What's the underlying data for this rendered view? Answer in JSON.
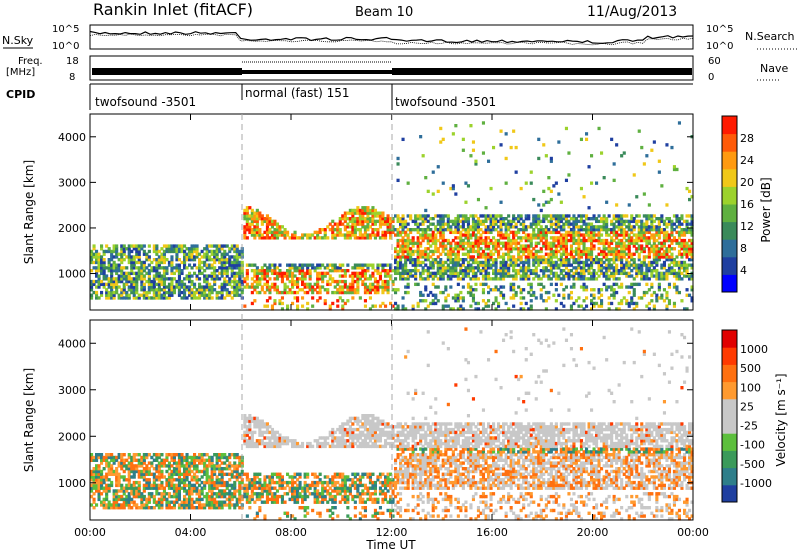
{
  "header": {
    "station": "Rankin Inlet (fitACF)",
    "beam": "Beam 10",
    "date": "11/Aug/2013"
  },
  "top_panels": {
    "nsky_label": "N.Sky",
    "nsky_left_ticks": [
      "10^5",
      "10^0"
    ],
    "nsearch_label": "N.Search",
    "nsearch_right_ticks": [
      "10^5",
      "10^0"
    ],
    "freq_label_line1": "Freq.",
    "freq_label_line2": "[MHz]",
    "freq_ticks": [
      "18",
      "8"
    ],
    "nave_label": "Nave",
    "nave_ticks": [
      "60",
      "0"
    ],
    "cpid_label": "CPID",
    "modes": [
      {
        "label": "twofsound -3501",
        "start": "00:00",
        "end": "06:00"
      },
      {
        "label": "normal (fast) 151",
        "start": "06:00",
        "end": "12:00"
      },
      {
        "label": "twofsound -3501",
        "start": "12:00",
        "end": "24:00"
      }
    ]
  },
  "colors": {
    "power": [
      "#0000ff",
      "#1f3fa0",
      "#2e6e9a",
      "#3a8a5a",
      "#5fb040",
      "#9cd22c",
      "#f0c818",
      "#ff9a10",
      "#ff5a08",
      "#ff1a00"
    ],
    "velocity": [
      "#1f3fa0",
      "#2e7e8a",
      "#3a9a5a",
      "#5cbf3c",
      "#c8c8c8",
      "#c8c8c8",
      "#ff9a30",
      "#ff7010",
      "#ff3a00",
      "#e00000"
    ]
  },
  "chart_data": [
    {
      "type": "heatmap",
      "name": "power",
      "xlabel": "",
      "ylabel": "Slant Range [km]",
      "x_ticks": [
        "00:00",
        "04:00",
        "08:00",
        "12:00",
        "16:00",
        "20:00",
        "00:00"
      ],
      "y_ticks": [
        "1000",
        "2000",
        "3000",
        "4000"
      ],
      "xlim": [
        0,
        24
      ],
      "ylim": [
        200,
        4500
      ],
      "colorbar": {
        "label": "Power [dB]",
        "ticks": [
          "4",
          "8",
          "12",
          "16",
          "20",
          "24",
          "28"
        ],
        "range": [
          0,
          32
        ]
      }
    },
    {
      "type": "heatmap",
      "name": "velocity",
      "xlabel": "Time UT",
      "ylabel": "Slant Range [km]",
      "x_ticks": [
        "00:00",
        "04:00",
        "08:00",
        "12:00",
        "16:00",
        "20:00",
        "00:00"
      ],
      "y_ticks": [
        "1000",
        "2000",
        "3000",
        "4000"
      ],
      "xlim": [
        0,
        24
      ],
      "ylim": [
        200,
        4500
      ],
      "colorbar": {
        "label": "Velocity [m s⁻¹]",
        "ticks": [
          "1000",
          "500",
          "100",
          "25",
          "-25",
          "-100",
          "-500",
          "-1000"
        ]
      }
    }
  ]
}
